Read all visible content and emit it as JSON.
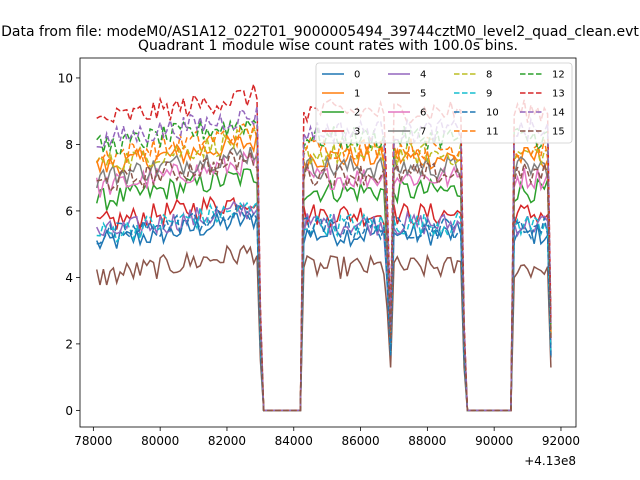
{
  "chart_data": {
    "type": "line",
    "suptitle": "Data from file: modeM0/AS1A12_022T01_9000005494_39744cztM0_level2_quad_clean.evt",
    "title": "Quadrant 1 module wise count rates with 100.0s bins.",
    "xlabel": "",
    "ylabel": "",
    "x_offset_label": "+4.13e8",
    "xlim": [
      77600,
      92450
    ],
    "ylim": [
      -0.5,
      10.6
    ],
    "x_ticks": [
      78000,
      80000,
      82000,
      84000,
      86000,
      88000,
      90000,
      92000
    ],
    "x_tick_labels": [
      "78000",
      "80000",
      "82000",
      "84000",
      "86000",
      "88000",
      "90000",
      "92000"
    ],
    "y_ticks": [
      0,
      2,
      4,
      6,
      8,
      10
    ],
    "y_tick_labels": [
      "0",
      "2",
      "4",
      "6",
      "8",
      "10"
    ],
    "grid": false,
    "legend_placement": "top-right",
    "legend_columns": 4,
    "segments": [
      {
        "x_start": 78100,
        "x_end": 82900,
        "ramp": [
          83000,
          83100
        ],
        "n": 49
      },
      {
        "gap": [
          83100,
          84200
        ],
        "value": 0
      },
      {
        "x_start": 84300,
        "x_end": 86800,
        "ramp": [
          86900
        ],
        "n": 26
      },
      {
        "x_start": 87000,
        "x_end": 89000,
        "ramp": [
          89100
        ],
        "n": 21
      },
      {
        "gap": [
          89200,
          90500
        ],
        "value": 0
      },
      {
        "x_start": 90600,
        "x_end": 91600,
        "ramp": [
          91700
        ],
        "n": 11
      }
    ],
    "series": [
      {
        "name": "0",
        "color": "#1f77b4",
        "dashed": false,
        "level": 5.3
      },
      {
        "name": "1",
        "color": "#ff7f0e",
        "dashed": false,
        "level": 7.6
      },
      {
        "name": "2",
        "color": "#2ca02c",
        "dashed": false,
        "level": 6.6
      },
      {
        "name": "3",
        "color": "#d62728",
        "dashed": false,
        "level": 5.9
      },
      {
        "name": "4",
        "color": "#9467bd",
        "dashed": false,
        "level": 5.6
      },
      {
        "name": "5",
        "color": "#8c564b",
        "dashed": false,
        "level": 4.3
      },
      {
        "name": "6",
        "color": "#e377c2",
        "dashed": false,
        "level": 7.0
      },
      {
        "name": "7",
        "color": "#7f7f7f",
        "dashed": false,
        "level": 7.3
      },
      {
        "name": "8",
        "color": "#bcbd22",
        "dashed": true,
        "level": 7.7
      },
      {
        "name": "9",
        "color": "#17becf",
        "dashed": true,
        "level": 5.6
      },
      {
        "name": "10",
        "color": "#1f77b4",
        "dashed": true,
        "level": 5.5
      },
      {
        "name": "11",
        "color": "#ff7f0e",
        "dashed": true,
        "level": 7.9
      },
      {
        "name": "12",
        "color": "#2ca02c",
        "dashed": true,
        "level": 8.2
      },
      {
        "name": "13",
        "color": "#d62728",
        "dashed": true,
        "level": 9.0
      },
      {
        "name": "14",
        "color": "#9467bd",
        "dashed": true,
        "level": 8.4
      },
      {
        "name": "15",
        "color": "#8c564b",
        "dashed": true,
        "level": 7.1
      }
    ]
  }
}
